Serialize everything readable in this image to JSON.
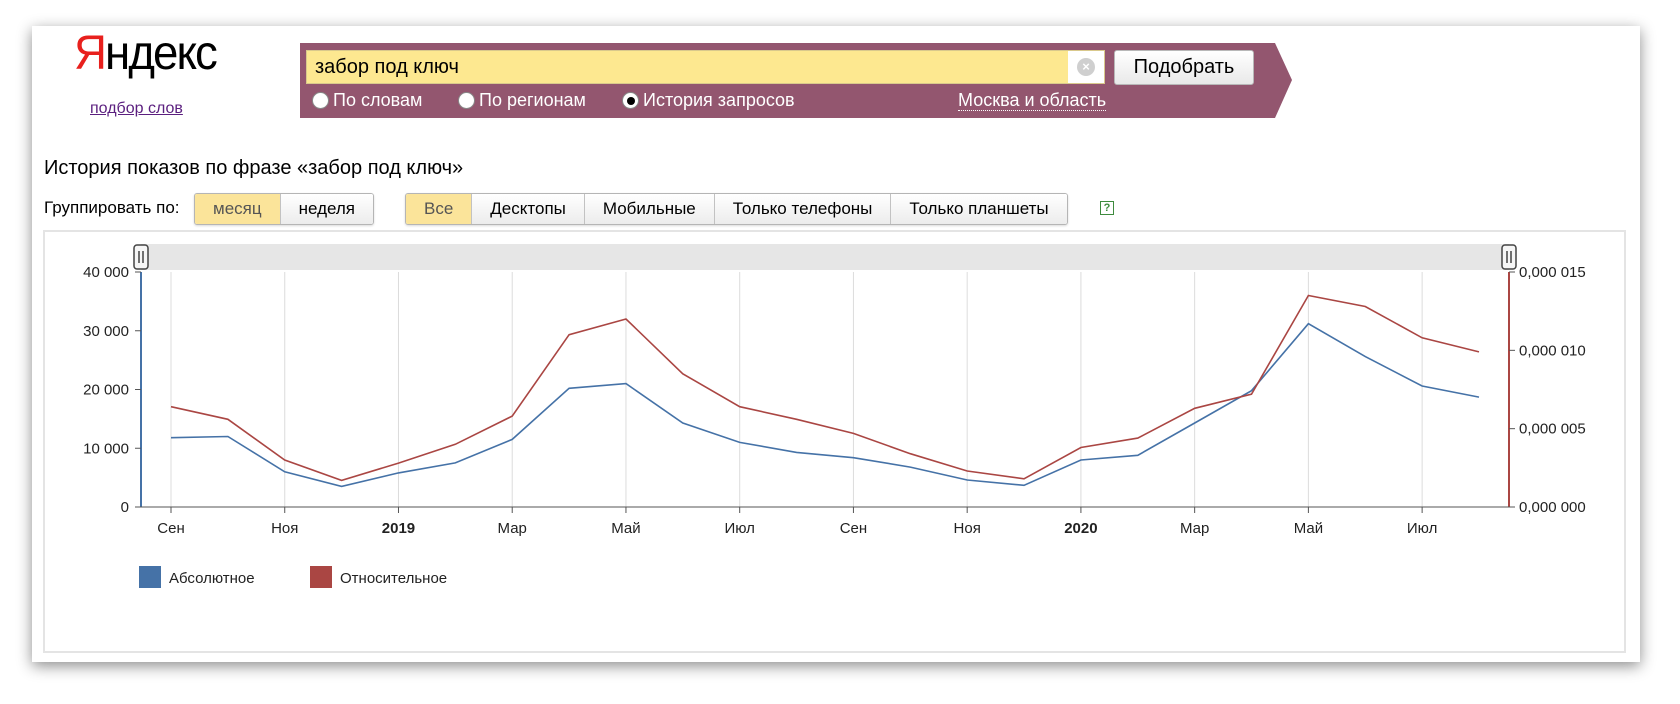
{
  "logo": {
    "first_letter": "Я",
    "rest": "ндекс"
  },
  "subtitle_link": "подбор слов",
  "search": {
    "value": "забор под ключ",
    "clear_icon": "clear-icon",
    "button": "Подобрать"
  },
  "modes": [
    {
      "label": "По словам",
      "selected": false
    },
    {
      "label": "По регионам",
      "selected": false
    },
    {
      "label": "История запросов",
      "selected": true
    }
  ],
  "region": "Москва и область",
  "page_title": "История показов по фразе «забор под ключ»",
  "group": {
    "label": "Группировать по:",
    "options": [
      "месяц",
      "неделя"
    ],
    "active": "месяц"
  },
  "devices": {
    "options": [
      "Все",
      "Десктопы",
      "Мобильные",
      "Только телефоны",
      "Только планшеты"
    ],
    "active": "Все"
  },
  "help_icon": "?",
  "chart_data": {
    "type": "line",
    "x": [
      "2018-09",
      "2018-10",
      "2018-11",
      "2018-12",
      "2019-01",
      "2019-02",
      "2019-03",
      "2019-04",
      "2019-05",
      "2019-06",
      "2019-07",
      "2019-08",
      "2019-09",
      "2019-10",
      "2019-11",
      "2019-12",
      "2020-01",
      "2020-02",
      "2020-03",
      "2020-04",
      "2020-05",
      "2020-06",
      "2020-07",
      "2020-08"
    ],
    "x_tick_labels": [
      {
        "label": "Сен",
        "bold": false,
        "x_index": 0
      },
      {
        "label": "Ноя",
        "bold": false,
        "x_index": 2
      },
      {
        "label": "2019",
        "bold": true,
        "x_index": 4
      },
      {
        "label": "Мар",
        "bold": false,
        "x_index": 6
      },
      {
        "label": "Май",
        "bold": false,
        "x_index": 8
      },
      {
        "label": "Июл",
        "bold": false,
        "x_index": 10
      },
      {
        "label": "Сен",
        "bold": false,
        "x_index": 12
      },
      {
        "label": "Ноя",
        "bold": false,
        "x_index": 14
      },
      {
        "label": "2020",
        "bold": true,
        "x_index": 16
      },
      {
        "label": "Мар",
        "bold": false,
        "x_index": 18
      },
      {
        "label": "Май",
        "bold": false,
        "x_index": 20
      },
      {
        "label": "Июл",
        "bold": false,
        "x_index": 22
      }
    ],
    "y_left": {
      "ticks": [
        "0",
        "10 000",
        "20 000",
        "30 000",
        "40 000"
      ],
      "lim": [
        0,
        40000
      ]
    },
    "y_right": {
      "ticks": [
        "0,000 000",
        "0,000 005",
        "0,000 010",
        "0,000 015"
      ],
      "lim": [
        0,
        1.5e-05
      ]
    },
    "series": [
      {
        "name": "Абсолютное",
        "color": "#4572a7",
        "axis": "left",
        "values": [
          11800,
          12000,
          6000,
          3500,
          5800,
          7500,
          11500,
          20200,
          21000,
          14300,
          11000,
          9300,
          8400,
          6800,
          4600,
          3700,
          8000,
          8800,
          14300,
          19800,
          31200,
          25600,
          20600,
          18700
        ]
      },
      {
        "name": "Относительное",
        "color": "#aa4643",
        "axis": "right",
        "values": [
          6.4e-06,
          5.6e-06,
          3e-06,
          1.7e-06,
          2.8e-06,
          4e-06,
          5.8e-06,
          1.1e-05,
          1.2e-05,
          8.5e-06,
          6.4e-06,
          5.6e-06,
          4.7e-06,
          3.4e-06,
          2.3e-06,
          1.8e-06,
          3.8e-06,
          4.4e-06,
          6.3e-06,
          7.2e-06,
          1.35e-05,
          1.28e-05,
          1.08e-05,
          9.9e-06
        ]
      }
    ]
  }
}
